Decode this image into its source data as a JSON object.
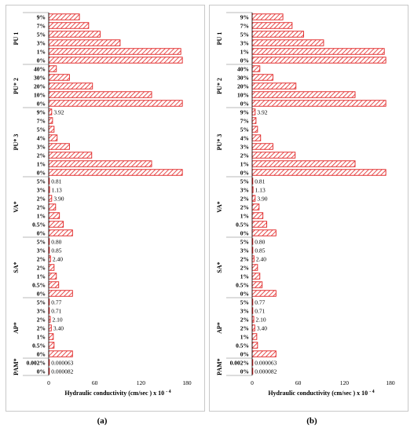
{
  "colors": {
    "bar_fill": "#ffffff",
    "bar_hatch": "#e02020",
    "axis": "#000000"
  },
  "panel_letters": [
    "(a)",
    "(b)"
  ],
  "chart_data": [
    {
      "type": "bar",
      "orientation": "horizontal",
      "title": "",
      "xlabel": "Hydraulic conductivity (cm/sec ) x  10",
      "xlabel_exponent": "- 4",
      "xlim": [
        0,
        180
      ],
      "xticks": [
        0,
        60,
        120,
        180
      ],
      "xtick_labels": [
        "0",
        "60",
        "120",
        "180"
      ],
      "grid": false,
      "groups": [
        {
          "name": "PU 1",
          "bars": [
            {
              "label": "9%",
              "value": 40
            },
            {
              "label": "7%",
              "value": 52
            },
            {
              "label": "5%",
              "value": 67
            },
            {
              "label": "3%",
              "value": 93
            },
            {
              "label": "1%",
              "value": 172
            },
            {
              "label": "0%",
              "value": 174
            }
          ]
        },
        {
          "name": "PU* 2",
          "bars": [
            {
              "label": "40%",
              "value": 10
            },
            {
              "label": "30%",
              "value": 27
            },
            {
              "label": "20%",
              "value": 57
            },
            {
              "label": "10%",
              "value": 134
            },
            {
              "label": "0%",
              "value": 174
            }
          ]
        },
        {
          "name": "PU* 3",
          "bars": [
            {
              "label": "9%",
              "value": 3.92,
              "data_label": "3.92"
            },
            {
              "label": "7%",
              "value": 5
            },
            {
              "label": "5%",
              "value": 7
            },
            {
              "label": "4%",
              "value": 11
            },
            {
              "label": "3%",
              "value": 27
            },
            {
              "label": "2%",
              "value": 56
            },
            {
              "label": "1%",
              "value": 134
            },
            {
              "label": "0%",
              "value": 174
            }
          ]
        },
        {
          "name": "VA*",
          "bars": [
            {
              "label": "5%",
              "value": 0.81,
              "data_label": "0.81"
            },
            {
              "label": "3%",
              "value": 1.13,
              "data_label": "1.13"
            },
            {
              "label": "2%",
              "value": 3.9,
              "data_label": "3.90"
            },
            {
              "label": "2%",
              "value": 9
            },
            {
              "label": "1%",
              "value": 14
            },
            {
              "label": "0.5%",
              "value": 19
            },
            {
              "label": "0%",
              "value": 31
            }
          ]
        },
        {
          "name": "SA*",
          "bars": [
            {
              "label": "5%",
              "value": 0.8,
              "data_label": "0.80"
            },
            {
              "label": "3%",
              "value": 0.85,
              "data_label": "0.85"
            },
            {
              "label": "2%",
              "value": 2.4,
              "data_label": "2.40"
            },
            {
              "label": "2%",
              "value": 7
            },
            {
              "label": "1%",
              "value": 10
            },
            {
              "label": "0.5%",
              "value": 13
            },
            {
              "label": "0%",
              "value": 31
            }
          ]
        },
        {
          "name": "AP*",
          "bars": [
            {
              "label": "5%",
              "value": 0.77,
              "data_label": "0.77"
            },
            {
              "label": "3%",
              "value": 0.71,
              "data_label": "0.71"
            },
            {
              "label": "2%",
              "value": 2.1,
              "data_label": "2.10"
            },
            {
              "label": "2%",
              "value": 3.4,
              "data_label": "3.40"
            },
            {
              "label": "1%",
              "value": 6
            },
            {
              "label": "0.5%",
              "value": 7
            },
            {
              "label": "0%",
              "value": 31
            }
          ]
        },
        {
          "name": "PAM*",
          "bars": [
            {
              "label": "0.002%",
              "value": 6.3e-05,
              "data_label": "0.000063"
            },
            {
              "label": "0%",
              "value": 8.2e-05,
              "data_label": "0.000082"
            }
          ]
        }
      ]
    },
    {
      "type": "bar",
      "orientation": "horizontal",
      "title": "",
      "xlabel": "Hydraulic conductivity (cm/sec ) x  10",
      "xlabel_exponent": "- 4",
      "xlim": [
        0,
        180
      ],
      "xticks": [
        0,
        60,
        120,
        180
      ],
      "xtick_labels": [
        "0",
        "60",
        "120",
        "180"
      ],
      "grid": false,
      "groups": [
        {
          "name": "PU 1",
          "bars": [
            {
              "label": "9%",
              "value": 40
            },
            {
              "label": "7%",
              "value": 52
            },
            {
              "label": "5%",
              "value": 67
            },
            {
              "label": "3%",
              "value": 93
            },
            {
              "label": "1%",
              "value": 172
            },
            {
              "label": "0%",
              "value": 174
            }
          ]
        },
        {
          "name": "PU* 2",
          "bars": [
            {
              "label": "40%",
              "value": 10
            },
            {
              "label": "30%",
              "value": 27
            },
            {
              "label": "20%",
              "value": 57
            },
            {
              "label": "10%",
              "value": 134
            },
            {
              "label": "0%",
              "value": 174
            }
          ]
        },
        {
          "name": "PU* 3",
          "bars": [
            {
              "label": "9%",
              "value": 3.92,
              "data_label": "3.92"
            },
            {
              "label": "7%",
              "value": 5
            },
            {
              "label": "5%",
              "value": 7
            },
            {
              "label": "4%",
              "value": 11
            },
            {
              "label": "3%",
              "value": 27
            },
            {
              "label": "2%",
              "value": 56
            },
            {
              "label": "1%",
              "value": 134
            },
            {
              "label": "0%",
              "value": 174
            }
          ]
        },
        {
          "name": "VA*",
          "bars": [
            {
              "label": "5%",
              "value": 0.81,
              "data_label": "0.81"
            },
            {
              "label": "3%",
              "value": 1.13,
              "data_label": "1.13"
            },
            {
              "label": "2%",
              "value": 3.9,
              "data_label": "3.90"
            },
            {
              "label": "2%",
              "value": 9
            },
            {
              "label": "1%",
              "value": 14
            },
            {
              "label": "0.5%",
              "value": 19
            },
            {
              "label": "0%",
              "value": 31
            }
          ]
        },
        {
          "name": "SA*",
          "bars": [
            {
              "label": "5%",
              "value": 0.8,
              "data_label": "0.80"
            },
            {
              "label": "3%",
              "value": 0.85,
              "data_label": "0.85"
            },
            {
              "label": "2%",
              "value": 2.4,
              "data_label": "2.40"
            },
            {
              "label": "2%",
              "value": 7
            },
            {
              "label": "1%",
              "value": 10
            },
            {
              "label": "0.5%",
              "value": 13
            },
            {
              "label": "0%",
              "value": 31
            }
          ]
        },
        {
          "name": "AP*",
          "bars": [
            {
              "label": "5%",
              "value": 0.77,
              "data_label": "0.77"
            },
            {
              "label": "3%",
              "value": 0.71,
              "data_label": "0.71"
            },
            {
              "label": "2%",
              "value": 2.1,
              "data_label": "2.10"
            },
            {
              "label": "2%",
              "value": 3.4,
              "data_label": "3.40"
            },
            {
              "label": "1%",
              "value": 6
            },
            {
              "label": "0.5%",
              "value": 7
            },
            {
              "label": "0%",
              "value": 31
            }
          ]
        },
        {
          "name": "PAM*",
          "bars": [
            {
              "label": "0.002%",
              "value": 6.3e-05,
              "data_label": "0.000063"
            },
            {
              "label": "0%",
              "value": 8.2e-05,
              "data_label": "0.000082"
            }
          ]
        }
      ]
    }
  ]
}
